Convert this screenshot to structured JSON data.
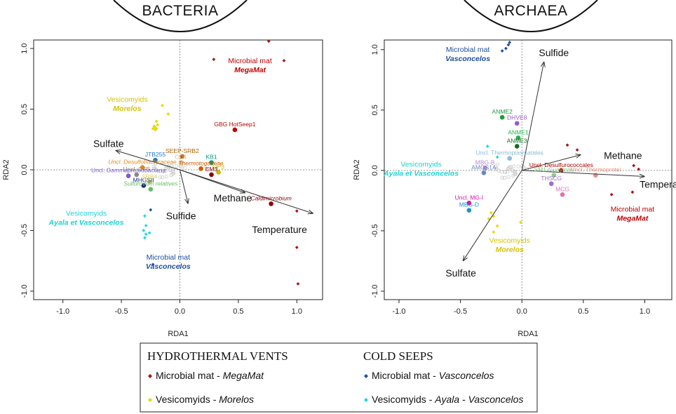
{
  "chart_data": [
    {
      "type": "scatter",
      "title": "BACTERIA",
      "xlabel": "RDA1",
      "ylabel": "RDA2",
      "xlim": [
        -1.25,
        1.22
      ],
      "ylim": [
        -1.07,
        1.07
      ],
      "xticks": [
        -1.0,
        -0.5,
        0.0,
        0.5,
        1.0
      ],
      "yticks": [
        -1.0,
        -0.5,
        0.0,
        0.5,
        1.0
      ],
      "xtick_labels": [
        "-1.0",
        "-0.5",
        "0.0",
        "0.5",
        "1.0"
      ],
      "ytick_labels": [
        "-1.0",
        "-0.5",
        "0.0",
        "0.5",
        "1.0"
      ],
      "vectors": [
        {
          "name": "Sulfate",
          "x": -0.55,
          "y": 0.16
        },
        {
          "name": "Sulfide",
          "x": 0.07,
          "y": -0.28
        },
        {
          "name": "Methane",
          "x": 0.56,
          "y": -0.19
        },
        {
          "name": "Temperature",
          "x": 1.14,
          "y": -0.36
        }
      ],
      "sites": [
        {
          "group": "mm_megamat",
          "x": 0.76,
          "y": 1.06
        },
        {
          "group": "mm_megamat",
          "x": 0.29,
          "y": 0.91
        },
        {
          "group": "mm_megamat",
          "x": 0.89,
          "y": 0.9
        },
        {
          "group": "mm_megamat",
          "x": 1.0,
          "y": -0.34
        },
        {
          "group": "mm_megamat",
          "x": 1.0,
          "y": -0.64
        },
        {
          "group": "mm_megamat",
          "x": 1.01,
          "y": -0.94
        },
        {
          "group": "ves_morelos",
          "x": -0.15,
          "y": 0.53
        },
        {
          "group": "ves_morelos",
          "x": -0.2,
          "y": 0.4
        },
        {
          "group": "ves_morelos",
          "x": -0.19,
          "y": 0.37
        },
        {
          "group": "ves_morelos",
          "x": -0.21,
          "y": 0.35
        },
        {
          "group": "ves_morelos",
          "x": -0.2,
          "y": 0.34
        },
        {
          "group": "ves_morelos",
          "x": -0.22,
          "y": 0.36
        },
        {
          "group": "ves_morelos",
          "x": -0.21,
          "y": 0.33
        },
        {
          "group": "ves_morelos",
          "x": -0.23,
          "y": 0.34
        },
        {
          "group": "ves_morelos",
          "x": -0.1,
          "y": 0.46
        },
        {
          "group": "mm_vasconcelos",
          "x": -0.23,
          "y": -0.78
        },
        {
          "group": "mm_vasconcelos",
          "x": -0.25,
          "y": -0.33
        },
        {
          "group": "ves_ayala",
          "x": -0.3,
          "y": -0.38
        },
        {
          "group": "ves_ayala",
          "x": -0.29,
          "y": -0.46
        },
        {
          "group": "ves_ayala",
          "x": -0.31,
          "y": -0.5
        },
        {
          "group": "ves_ayala",
          "x": -0.29,
          "y": -0.53
        },
        {
          "group": "ves_ayala",
          "x": -0.3,
          "y": -0.56
        },
        {
          "group": "ves_ayala",
          "x": -0.26,
          "y": -0.52
        }
      ],
      "taxa": [
        {
          "label": "GBG HotSeep1",
          "x": 0.47,
          "y": 0.33,
          "color": "#c00000"
        },
        {
          "label": "SEEP-SRB2",
          "x": 0.02,
          "y": 0.11,
          "color": "#b35f00"
        },
        {
          "label": "OD1",
          "x": 0.01,
          "y": 0.06,
          "color": "#d8c090"
        },
        {
          "label": "KB1",
          "x": 0.27,
          "y": 0.06,
          "color": "#00987a"
        },
        {
          "label": "Thermotogaceae",
          "x": 0.18,
          "y": 0.01,
          "color": "#d05a00"
        },
        {
          "label": "OP3",
          "x": 0.33,
          "y": -0.02,
          "color": "#d0b800"
        },
        {
          "label": "EM3",
          "x": 0.27,
          "y": -0.04,
          "color": "#8b0000"
        },
        {
          "label": "JTB255",
          "x": -0.21,
          "y": 0.08,
          "color": "#1f77d0"
        },
        {
          "label": "Uncl. Desulfobacteraceae",
          "x": -0.32,
          "y": 0.02,
          "color": "#e08a1e"
        },
        {
          "label": "Uncl. CFB",
          "x": -0.37,
          "y": -0.04,
          "color": "#888888"
        },
        {
          "label": "Uncl. Gammaproteobacteria",
          "x": -0.44,
          "y": -0.05,
          "color": "#7b5ccc"
        },
        {
          "label": "MHGSII",
          "x": -0.31,
          "y": -0.13,
          "color": "#1a2e80"
        },
        {
          "label": "SRB4",
          "x": -0.26,
          "y": -0.1,
          "color": "#d8d060"
        },
        {
          "label": "Sulfurovum relatives",
          "x": -0.25,
          "y": -0.16,
          "color": "#66bb66"
        },
        {
          "label": "Caldimicrobium",
          "x": 0.78,
          "y": -0.28,
          "color": "#8b0000"
        }
      ],
      "group_labels": [
        {
          "lines": [
            "Microbial mat",
            "MegaMat"
          ],
          "x": 0.6,
          "y": 0.88,
          "color": "#c00000"
        },
        {
          "lines": [
            "Vesicomyids",
            "Morelos"
          ],
          "x": -0.45,
          "y": 0.56,
          "color": "#d4c400"
        },
        {
          "lines": [
            "Vesicomyids",
            "Ayala et Vasconcelos"
          ],
          "x": -0.8,
          "y": -0.38,
          "color": "#1fd2d2"
        },
        {
          "lines": [
            "Microbial mat",
            "Vasconcelos"
          ],
          "x": -0.1,
          "y": -0.74,
          "color": "#1f4fa0"
        }
      ]
    },
    {
      "type": "scatter",
      "title": "ARCHAEA",
      "xlabel": "RDA1",
      "ylabel": "RDA2",
      "xlim": [
        -1.12,
        1.22
      ],
      "ylim": [
        -1.07,
        1.08
      ],
      "xticks": [
        -1.0,
        -0.5,
        0.0,
        0.5,
        1.0
      ],
      "yticks": [
        -1.0,
        -0.5,
        0.0,
        0.5,
        1.0
      ],
      "xtick_labels": [
        "-1.0",
        "-0.5",
        "0.0",
        "0.5",
        "1.0"
      ],
      "ytick_labels": [
        "-1.0",
        "-0.5",
        "0.0",
        "0.5",
        "1.0"
      ],
      "vectors": [
        {
          "name": "Sulfide",
          "x": 0.18,
          "y": 0.9
        },
        {
          "name": "Methane",
          "x": 0.48,
          "y": 0.13
        },
        {
          "name": "Temperature",
          "x": 1.0,
          "y": -0.05
        },
        {
          "name": "Sulfate",
          "x": -0.48,
          "y": -0.75
        }
      ],
      "sites": [
        {
          "group": "mm_vasconcelos",
          "x": -0.1,
          "y": 1.06
        },
        {
          "group": "mm_vasconcelos",
          "x": -0.11,
          "y": 1.04
        },
        {
          "group": "mm_vasconcelos",
          "x": -0.13,
          "y": 1.01
        },
        {
          "group": "mm_vasconcelos",
          "x": -0.16,
          "y": 0.99
        },
        {
          "group": "ves_ayala",
          "x": -0.28,
          "y": 0.2
        },
        {
          "group": "ves_ayala",
          "x": -0.2,
          "y": 0.11
        },
        {
          "group": "mm_megamat",
          "x": 0.37,
          "y": 0.21
        },
        {
          "group": "mm_megamat",
          "x": 0.45,
          "y": 0.17
        },
        {
          "group": "mm_megamat",
          "x": 0.91,
          "y": 0.04
        },
        {
          "group": "mm_megamat",
          "x": 0.95,
          "y": 0.01
        },
        {
          "group": "mm_megamat",
          "x": 0.73,
          "y": -0.2
        },
        {
          "group": "mm_megamat",
          "x": 0.9,
          "y": -0.18
        },
        {
          "group": "ves_morelos",
          "x": -0.25,
          "y": -0.35
        },
        {
          "group": "ves_morelos",
          "x": -0.23,
          "y": -0.38
        },
        {
          "group": "ves_morelos",
          "x": -0.27,
          "y": -0.4
        },
        {
          "group": "ves_morelos",
          "x": -0.2,
          "y": -0.46
        },
        {
          "group": "ves_morelos",
          "x": -0.23,
          "y": -0.51
        },
        {
          "group": "ves_morelos",
          "x": -0.01,
          "y": -0.43
        }
      ],
      "taxa": [
        {
          "label": "ANME2",
          "x": -0.16,
          "y": 0.44,
          "color": "#1a9e3a"
        },
        {
          "label": "DHVE8",
          "x": -0.04,
          "y": 0.39,
          "color": "#9b59c8"
        },
        {
          "label": "ANME1",
          "x": -0.03,
          "y": 0.27,
          "color": "#22b14c"
        },
        {
          "label": "ANME3",
          "x": -0.04,
          "y": 0.2,
          "color": "#166b22"
        },
        {
          "label": "Uncl. Thermoplasmatales",
          "x": -0.1,
          "y": 0.1,
          "color": "#88bbdd"
        },
        {
          "label": "MBG-B",
          "x": -0.3,
          "y": 0.02,
          "color": "#bb88cc"
        },
        {
          "label": "AMOS1A",
          "x": -0.31,
          "y": -0.02,
          "color": "#6688bb"
        },
        {
          "label": "Uncl. Desulfurococcales",
          "x": 0.32,
          "y": 0.0,
          "color": "#b00000"
        },
        {
          "label": "Uncl. Thermoprotei",
          "x": 0.6,
          "y": -0.04,
          "color": "#e89080"
        },
        {
          "label": "SM1-Guaymas",
          "x": 0.26,
          "y": -0.04,
          "color": "#88cc88"
        },
        {
          "label": "THSCG",
          "x": 0.24,
          "y": -0.11,
          "color": "#a070c0"
        },
        {
          "label": "MCG",
          "x": 0.33,
          "y": -0.2,
          "color": "#e070b0"
        },
        {
          "label": "Uncl. MG-I",
          "x": -0.43,
          "y": -0.27,
          "color": "#e010a0"
        },
        {
          "label": "MBG-D",
          "x": -0.43,
          "y": -0.33,
          "color": "#2090d0"
        }
      ],
      "group_labels": [
        {
          "lines": [
            "Microbial mat",
            "Vasconcelos"
          ],
          "x": -0.44,
          "y": 0.98,
          "color": "#1f4fa0"
        },
        {
          "lines": [
            "Vesicomyids",
            "Ayala et Vasconcelos"
          ],
          "x": -0.82,
          "y": 0.03,
          "color": "#1fd2d2"
        },
        {
          "lines": [
            "Microbial mat",
            "MegaMat"
          ],
          "x": 0.9,
          "y": -0.34,
          "color": "#c00000"
        },
        {
          "lines": [
            "Vesicomyids",
            "Morelos"
          ],
          "x": -0.1,
          "y": -0.6,
          "color": "#d4c400"
        }
      ]
    }
  ],
  "colors": {
    "mm_megamat": "#b01010",
    "ves_morelos": "#e8d800",
    "mm_vasconcelos": "#1f4fa0",
    "ves_ayala": "#20d8e0",
    "arrow": "#333333",
    "frame": "#222222"
  },
  "legend": {
    "hydrothermal_title": "HYDROTHERMAL VENTS",
    "cold_title": "COLD SEEPS",
    "items": [
      {
        "group": "mm_megamat",
        "prefix": "Microbial mat - ",
        "italic": "MegaMat",
        "column": 0
      },
      {
        "group": "ves_morelos",
        "prefix": "Vesicomyids - ",
        "italic": "Morelos",
        "column": 0
      },
      {
        "group": "mm_vasconcelos",
        "prefix": "Microbial mat - ",
        "italic": "Vasconcelos",
        "column": 1
      },
      {
        "group": "ves_ayala",
        "prefix": "Vesicomyids - ",
        "italic": "Ayala - Vasconcelos",
        "column": 1
      }
    ]
  }
}
